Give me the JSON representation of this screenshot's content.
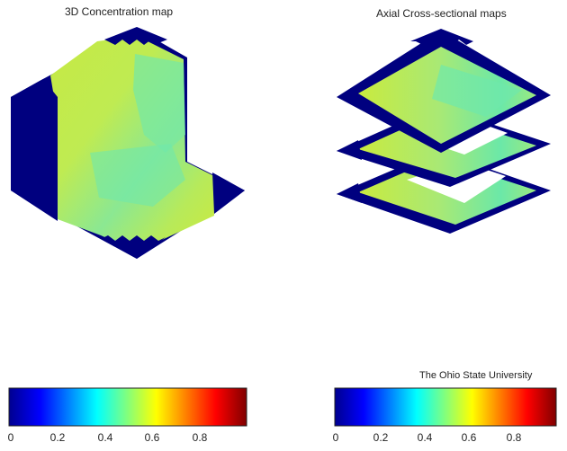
{
  "panels": {
    "left": {
      "title": "3D Concentration map"
    },
    "right": {
      "title": "Axial Cross-sectional maps"
    }
  },
  "colorbar": {
    "ticks": [
      "0",
      "0.2",
      "0.4",
      "0.6",
      "0.8"
    ],
    "colormap": "jet",
    "stops": [
      "#00008f",
      "#0000ff",
      "#00ffff",
      "#ffff00",
      "#ff0000",
      "#800000"
    ]
  },
  "credit": "The Ohio State University",
  "colors": {
    "background": "#ffffff",
    "out_of_domain": "#00007f",
    "field_yellow_green": "#c8ea40",
    "field_cyan_green": "#5fe8b0"
  }
}
